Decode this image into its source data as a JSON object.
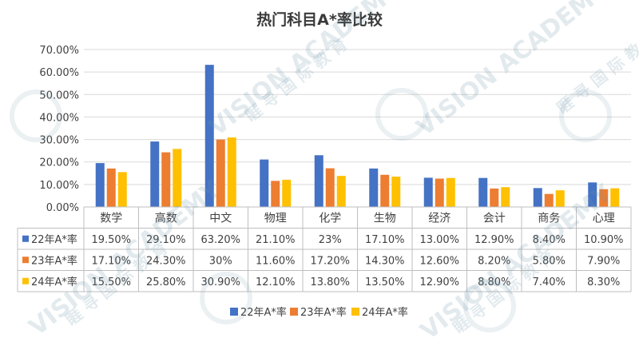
{
  "chart_data": {
    "type": "bar",
    "title": "热门科目A*率比较",
    "categories": [
      "数学",
      "高数",
      "中文",
      "物理",
      "化学",
      "生物",
      "经济",
      "会计",
      "商务",
      "心理"
    ],
    "series": [
      {
        "name": "22年A*率",
        "color": "#4472C4",
        "values": [
          19.5,
          29.1,
          63.2,
          21.1,
          23,
          17.1,
          13.0,
          12.9,
          8.4,
          10.9
        ],
        "labels": [
          "19.50%",
          "29.10%",
          "63.20%",
          "21.10%",
          "23%",
          "17.10%",
          "13.00%",
          "12.90%",
          "8.40%",
          "10.90%"
        ]
      },
      {
        "name": "23年A*率",
        "color": "#ED7D31",
        "values": [
          17.1,
          24.3,
          30,
          11.6,
          17.2,
          14.3,
          12.6,
          8.2,
          5.8,
          7.9
        ],
        "labels": [
          "17.10%",
          "24.30%",
          "30%",
          "11.60%",
          "17.20%",
          "14.30%",
          "12.60%",
          "8.20%",
          "5.80%",
          "7.90%"
        ]
      },
      {
        "name": "24年A*率",
        "color": "#FFC000",
        "values": [
          15.5,
          25.8,
          30.9,
          12.1,
          13.8,
          13.5,
          12.9,
          8.8,
          7.4,
          8.3
        ],
        "labels": [
          "15.50%",
          "25.80%",
          "30.90%",
          "12.10%",
          "13.80%",
          "13.50%",
          "12.90%",
          "8.80%",
          "7.40%",
          "8.30%"
        ]
      }
    ],
    "ylim": [
      0,
      70
    ],
    "yticks": [
      "0.00%",
      "10.00%",
      "20.00%",
      "30.00%",
      "40.00%",
      "50.00%",
      "60.00%",
      "70.00%"
    ],
    "legend_position": "bottom",
    "data_table": true
  },
  "watermark": {
    "text_en": "VISION ACADEMY",
    "text_cn": "睚 寻 国 际 教 育"
  }
}
